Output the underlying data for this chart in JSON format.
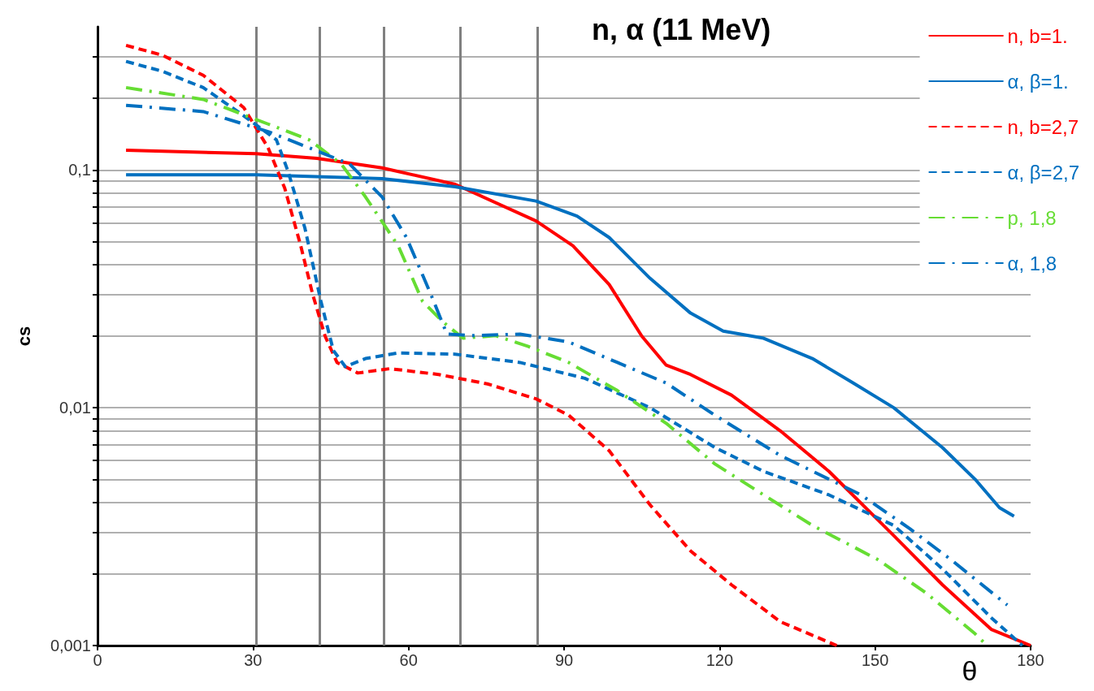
{
  "chart_data": {
    "type": "line",
    "title": "n, α (11 MeV)",
    "xlabel": "θ",
    "ylabel": "cs",
    "log": "y",
    "grid": "y",
    "legend": "right",
    "marker": "none",
    "xlim": [
      0,
      180
    ],
    "xticks": [
      0,
      30,
      60,
      90,
      120,
      150,
      180
    ],
    "ylim": [
      0.001,
      0.4
    ],
    "yticks": [
      {
        "value": 0.001,
        "label": "0,001"
      },
      {
        "value": 0.002,
        "label": null
      },
      {
        "value": 0.003,
        "label": null
      },
      {
        "value": 0.004,
        "label": null
      },
      {
        "value": 0.005,
        "label": null
      },
      {
        "value": 0.006,
        "label": null
      },
      {
        "value": 0.007,
        "label": null
      },
      {
        "value": 0.008,
        "label": null
      },
      {
        "value": 0.009,
        "label": null
      },
      {
        "value": 0.01,
        "label": "0,01"
      },
      {
        "value": 0.02,
        "label": null
      },
      {
        "value": 0.03,
        "label": null
      },
      {
        "value": 0.04,
        "label": null
      },
      {
        "value": 0.05,
        "label": null
      },
      {
        "value": 0.06,
        "label": null
      },
      {
        "value": 0.07,
        "label": null
      },
      {
        "value": 0.08,
        "label": null
      },
      {
        "value": 0.09,
        "label": null
      },
      {
        "value": 0.1,
        "label": "0,1"
      },
      {
        "value": 0.2,
        "label": null
      },
      {
        "value": 0.3,
        "label": null
      }
    ],
    "ref_lines": [
      {
        "axis": "x",
        "value": 30.6,
        "color": "#808080"
      },
      {
        "axis": "x",
        "value": 42.8,
        "color": "#808080"
      },
      {
        "axis": "x",
        "value": 55.2,
        "color": "#808080"
      },
      {
        "axis": "x",
        "value": 69.9,
        "color": "#808080"
      },
      {
        "axis": "x",
        "value": 84.8,
        "color": "#808080"
      }
    ],
    "series": [
      {
        "name": "n, b=1.",
        "color": "#ff0000",
        "line_style": "solid",
        "x": [
          5.5,
          30.6,
          42.3,
          54.9,
          69,
          84.6,
          91.7,
          98.7,
          105,
          109.7,
          114.4,
          122.3,
          131.7,
          141.1,
          153.6,
          163,
          172.4,
          180
        ],
        "values": [
          0.121,
          0.117,
          0.112,
          0.102,
          0.087,
          0.061,
          0.048,
          0.033,
          0.02,
          0.0151,
          0.0138,
          0.0113,
          0.008,
          0.0054,
          0.0029,
          0.0018,
          0.00117,
          0.001
        ]
      },
      {
        "name": "α, β=1.",
        "color": "#0070c0",
        "line_style": "solid",
        "x": [
          5.5,
          30.6,
          54.9,
          69,
          84.6,
          92.5,
          98.7,
          106.6,
          114.4,
          120.7,
          128.5,
          137.9,
          145.8,
          153.6,
          163,
          169.3,
          174,
          176.8
        ],
        "values": [
          0.0955,
          0.0955,
          0.092,
          0.085,
          0.074,
          0.064,
          0.052,
          0.035,
          0.025,
          0.021,
          0.0196,
          0.0161,
          0.0127,
          0.01,
          0.0068,
          0.005,
          0.0038,
          0.0035
        ]
      },
      {
        "name": "n, b=2,7",
        "color": "#ff0000",
        "line_style": "dashed",
        "x": [
          5.5,
          12.5,
          20.4,
          28.2,
          32.9,
          36.1,
          39.2,
          41.5,
          43.9,
          46.2,
          50.2,
          56.4,
          65.8,
          75.2,
          84.6,
          90.9,
          98.7,
          106.6,
          114.4,
          122.3,
          131.7,
          142.6
        ],
        "values": [
          0.334,
          0.304,
          0.25,
          0.183,
          0.124,
          0.084,
          0.048,
          0.03,
          0.02,
          0.0155,
          0.014,
          0.0146,
          0.0138,
          0.0126,
          0.0109,
          0.0093,
          0.0066,
          0.0039,
          0.0025,
          0.0018,
          0.00126,
          0.001
        ]
      },
      {
        "name": "α, β=2,7",
        "color": "#0070c0",
        "line_style": "dashed",
        "x": [
          5.5,
          12.5,
          20.4,
          28.2,
          34.5,
          36.8,
          40,
          43.1,
          45.5,
          47.8,
          51.7,
          58,
          69,
          81.5,
          94,
          106.6,
          119.1,
          128.5,
          141.1,
          153.6,
          163,
          172.4,
          178.4
        ],
        "values": [
          0.286,
          0.26,
          0.222,
          0.169,
          0.134,
          0.098,
          0.057,
          0.028,
          0.0174,
          0.0149,
          0.0161,
          0.017,
          0.0168,
          0.0155,
          0.0133,
          0.01,
          0.0068,
          0.0054,
          0.0043,
          0.0032,
          0.0021,
          0.00131,
          0.001
        ]
      },
      {
        "name": "p, 1,8",
        "color": "#66dd33",
        "line_style": "dashdot",
        "x": [
          5.5,
          20.4,
          32.9,
          40.8,
          47,
          51.7,
          58,
          62.7,
          66.6,
          70.5,
          76.8,
          83.1,
          90.9,
          100.3,
          109.7,
          119.1,
          128.5,
          137.9,
          150.5,
          159.9,
          169.3,
          171.6
        ],
        "values": [
          0.222,
          0.198,
          0.156,
          0.134,
          0.106,
          0.077,
          0.048,
          0.028,
          0.023,
          0.0196,
          0.0201,
          0.0181,
          0.0155,
          0.0118,
          0.0086,
          0.0058,
          0.0043,
          0.0032,
          0.0023,
          0.00166,
          0.00112,
          0.001
        ]
      },
      {
        "name": "α, 1,8",
        "color": "#0070c0",
        "line_style": "dashdot",
        "x": [
          5.5,
          20.4,
          32.9,
          40.8,
          48.6,
          54.9,
          59.6,
          64.3,
          67.4,
          72.1,
          81.5,
          90.9,
          100.3,
          109.7,
          119.1,
          131.7,
          147.3,
          156.7,
          164.6,
          175.5
        ],
        "values": [
          0.187,
          0.176,
          0.145,
          0.124,
          0.106,
          0.077,
          0.052,
          0.03,
          0.0204,
          0.0201,
          0.0204,
          0.0189,
          0.0155,
          0.0127,
          0.0093,
          0.0063,
          0.0043,
          0.0031,
          0.0023,
          0.00148
        ]
      }
    ]
  }
}
